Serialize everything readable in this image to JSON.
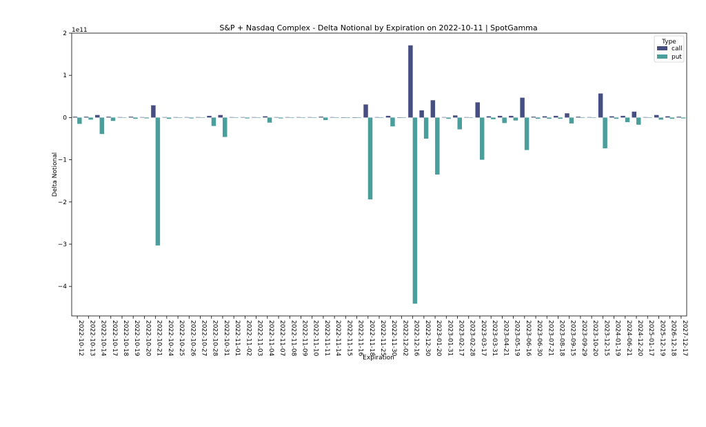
{
  "chart_data": {
    "type": "bar",
    "title": "S&P + Nasdaq Complex - Delta Notional by Expiration on 2022-10-11 | SpotGamma",
    "xlabel": "Expiration",
    "ylabel": "Delta Notional",
    "y_offset_label": "1e11",
    "y_scale": 100000000000.0,
    "ylim": [
      -4.7,
      2.0
    ],
    "yticks": [
      2,
      1,
      0,
      -1,
      -2,
      -3,
      -4
    ],
    "ytick_labels": [
      "2",
      "1",
      "0",
      "−1",
      "−2",
      "−3",
      "−4"
    ],
    "grid": false,
    "legend": {
      "title": "Type",
      "position": "top-right"
    },
    "categories": [
      "2022-10-12",
      "2022-10-13",
      "2022-10-14",
      "2022-10-17",
      "2022-10-18",
      "2022-10-19",
      "2022-10-20",
      "2022-10-21",
      "2022-10-24",
      "2022-10-25",
      "2022-10-26",
      "2022-10-27",
      "2022-10-28",
      "2022-10-31",
      "2022-11-01",
      "2022-11-02",
      "2022-11-03",
      "2022-11-04",
      "2022-11-07",
      "2022-11-08",
      "2022-11-09",
      "2022-11-10",
      "2022-11-11",
      "2022-11-14",
      "2022-11-15",
      "2022-11-16",
      "2022-11-18",
      "2022-11-25",
      "2022-11-30",
      "2022-12-02",
      "2022-12-16",
      "2022-12-30",
      "2023-01-20",
      "2023-01-31",
      "2023-02-17",
      "2023-02-28",
      "2023-03-17",
      "2023-03-31",
      "2023-04-21",
      "2023-05-19",
      "2023-06-16",
      "2023-06-30",
      "2023-07-21",
      "2023-08-18",
      "2023-09-15",
      "2023-09-29",
      "2023-10-20",
      "2023-12-15",
      "2024-01-19",
      "2024-06-21",
      "2024-12-20",
      "2025-01-17",
      "2025-12-19",
      "2026-12-18",
      "2027-12-17"
    ],
    "series": [
      {
        "name": "call",
        "color": "#464e82",
        "values": [
          0.02,
          0.02,
          0.06,
          0.02,
          0.01,
          0.02,
          0.01,
          0.29,
          0.01,
          0.01,
          0.01,
          0.01,
          0.04,
          0.06,
          0.01,
          0.01,
          0.01,
          0.03,
          0.01,
          0.01,
          0.01,
          0.01,
          0.02,
          0.01,
          0.0,
          0.0,
          0.31,
          0.01,
          0.04,
          0.0,
          1.71,
          0.17,
          0.41,
          0.01,
          0.05,
          0.01,
          0.36,
          0.03,
          0.04,
          0.04,
          0.47,
          0.02,
          0.03,
          0.04,
          0.1,
          0.02,
          0.01,
          0.57,
          0.03,
          0.04,
          0.14,
          0.01,
          0.06,
          0.03,
          0.02
        ]
      },
      {
        "name": "put",
        "color": "#4a9e9c",
        "values": [
          -0.15,
          -0.05,
          -0.39,
          -0.08,
          -0.01,
          -0.03,
          -0.02,
          -3.03,
          -0.03,
          -0.01,
          -0.02,
          -0.01,
          -0.2,
          -0.46,
          -0.01,
          -0.02,
          -0.01,
          -0.12,
          -0.02,
          -0.01,
          -0.01,
          -0.01,
          -0.06,
          -0.01,
          0.0,
          0.0,
          -1.94,
          -0.01,
          -0.21,
          0.0,
          -4.41,
          -0.5,
          -1.35,
          -0.03,
          -0.28,
          -0.01,
          -1.0,
          -0.04,
          -0.13,
          -0.07,
          -0.77,
          -0.03,
          -0.03,
          -0.03,
          -0.14,
          -0.01,
          -0.01,
          -0.73,
          -0.03,
          -0.11,
          -0.17,
          -0.01,
          -0.05,
          -0.03,
          -0.02
        ]
      }
    ]
  }
}
